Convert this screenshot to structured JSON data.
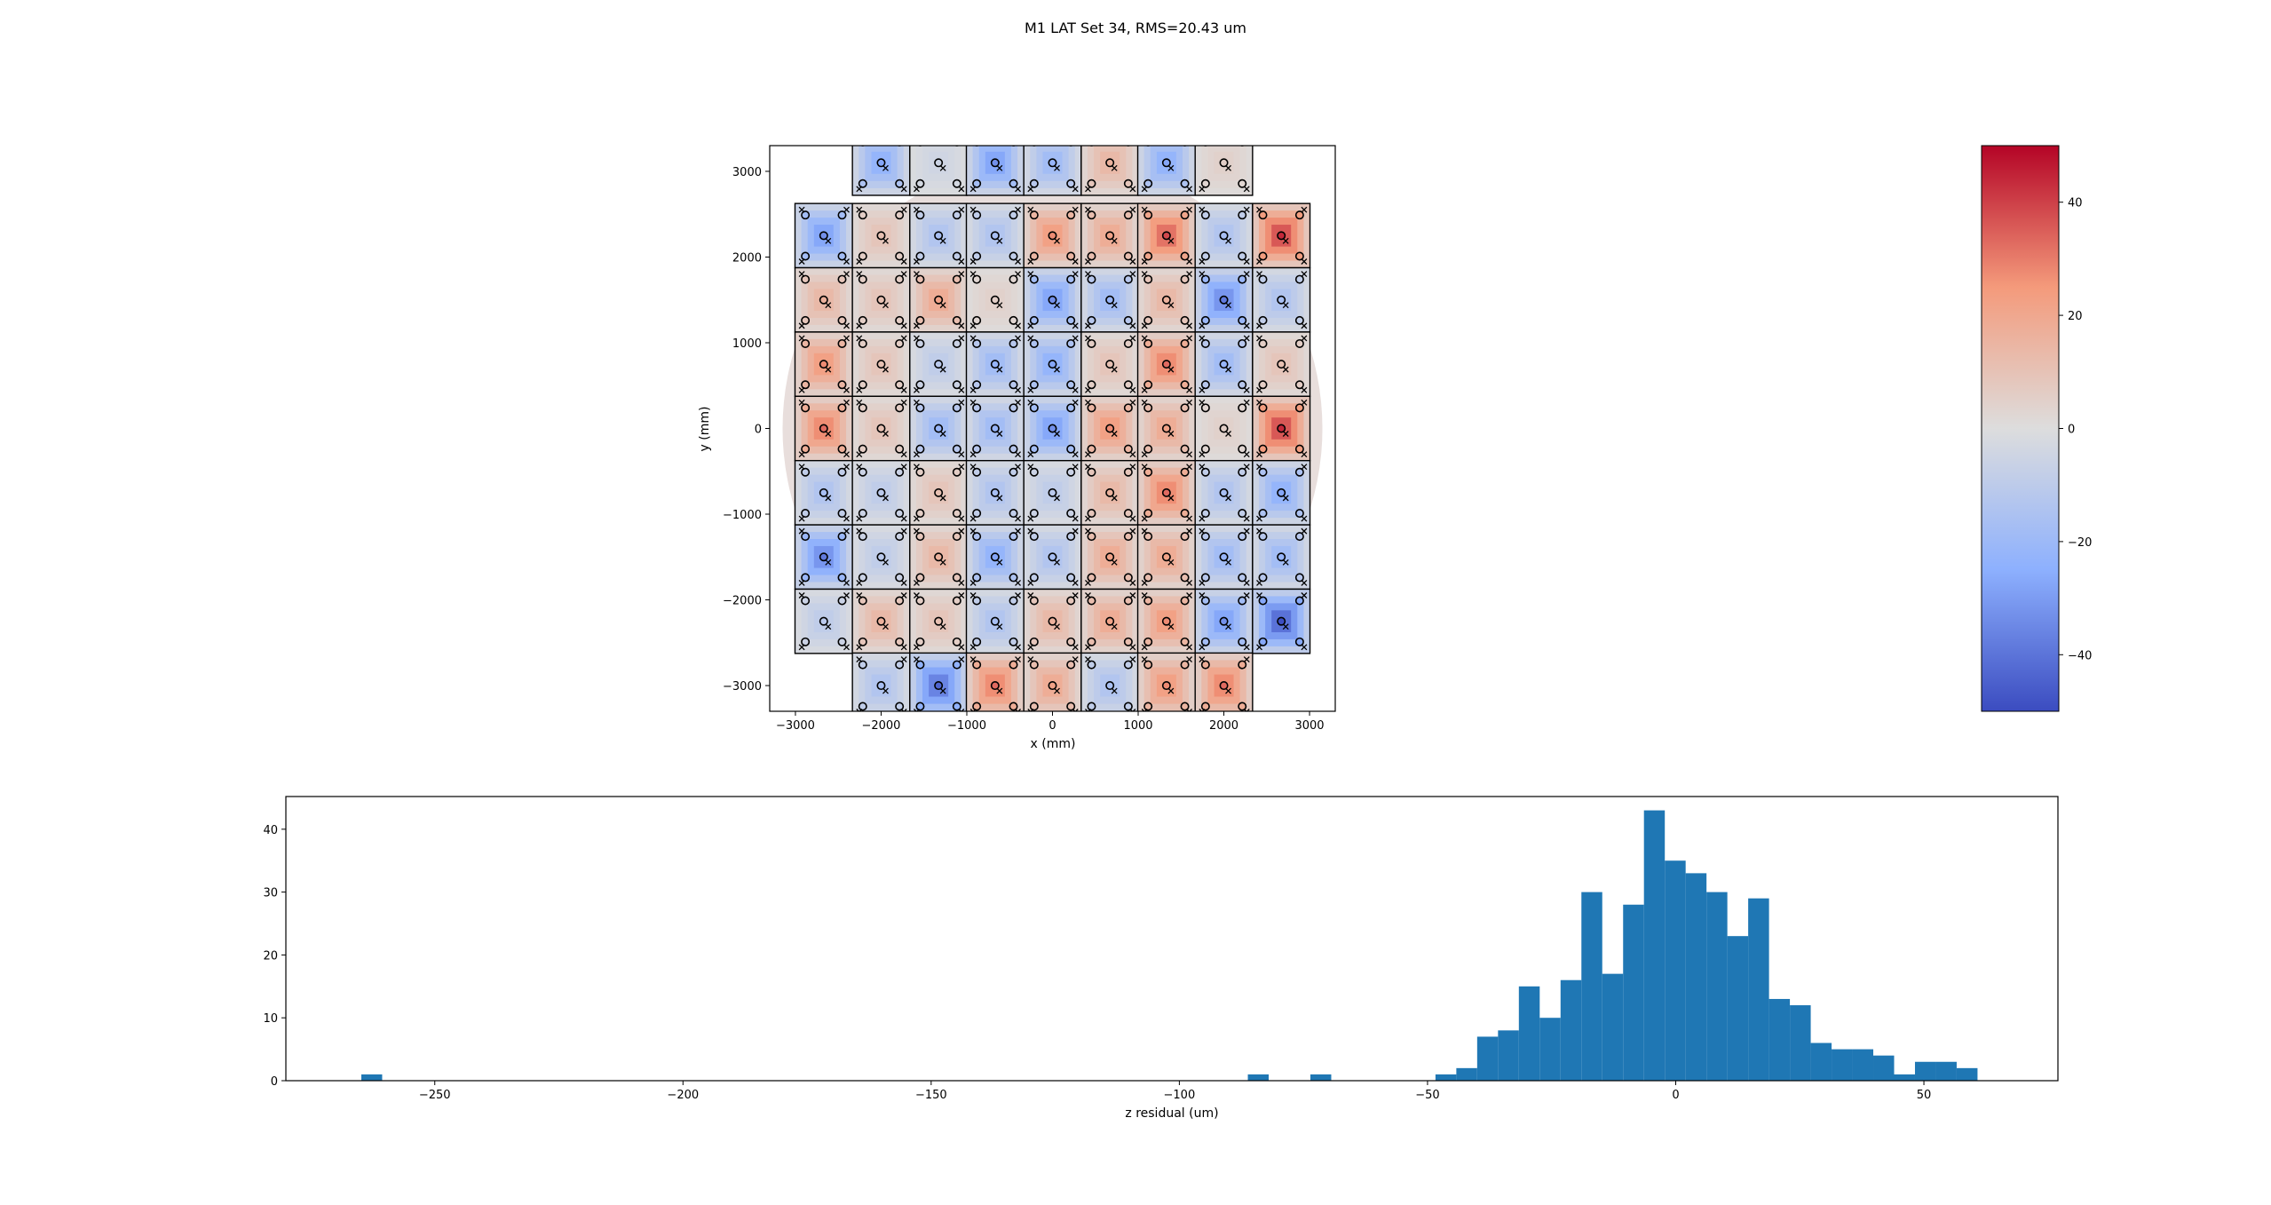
{
  "figure": {
    "title": "M1 LAT Set 34, RMS=20.43 um"
  },
  "chart_data": [
    {
      "type": "heatmap",
      "xlabel": "x (mm)",
      "ylabel": "y (mm)",
      "xlim": [
        -3300,
        3300
      ],
      "ylim": [
        -3300,
        3300
      ],
      "xticks": [
        -3000,
        -2000,
        -1000,
        0,
        1000,
        2000,
        3000
      ],
      "yticks": [
        -3000,
        -2000,
        -1000,
        0,
        1000,
        2000,
        3000
      ],
      "xtick_labels": [
        "−3000",
        "−2000",
        "−1000",
        "0",
        "1000",
        "2000",
        "3000"
      ],
      "ytick_labels": [
        "−3000",
        "−2000",
        "−1000",
        "0",
        "1000",
        "2000",
        "3000"
      ],
      "colormap": "coolwarm",
      "clim": [
        -50,
        50
      ],
      "colorbar_ticks": [
        -40,
        -20,
        0,
        20,
        40
      ],
      "colorbar_tick_labels": [
        "−40",
        "−20",
        "0",
        "20",
        "40"
      ],
      "panel_columns_x": [
        -2670,
        -2000,
        -1330,
        -670,
        0,
        670,
        1330,
        2000,
        2670
      ],
      "panel_rows_y": [
        3100,
        2250,
        1500,
        750,
        0,
        -750,
        -1500,
        -2250,
        -3000
      ],
      "panel_rows_columns": [
        [
          1,
          7
        ],
        [
          0,
          8
        ],
        [
          0,
          8
        ],
        [
          0,
          8
        ],
        [
          0,
          8
        ],
        [
          0,
          8
        ],
        [
          0,
          8
        ],
        [
          0,
          8
        ],
        [
          1,
          7
        ]
      ],
      "panel_center_values": [
        [
          null,
          -25,
          -5,
          -30,
          -20,
          15,
          -25,
          5,
          null
        ],
        [
          -30,
          10,
          -15,
          -15,
          25,
          20,
          35,
          -15,
          40
        ],
        [
          15,
          10,
          20,
          5,
          -30,
          -20,
          15,
          -35,
          -15
        ],
        [
          25,
          10,
          -10,
          -20,
          -25,
          10,
          30,
          -20,
          10
        ],
        [
          30,
          10,
          -20,
          -20,
          -30,
          25,
          20,
          5,
          40
        ],
        [
          -15,
          -10,
          10,
          -15,
          -10,
          15,
          30,
          -15,
          -25
        ],
        [
          -35,
          -10,
          15,
          -25,
          -15,
          20,
          20,
          -20,
          -20
        ],
        [
          -10,
          15,
          10,
          -15,
          15,
          20,
          25,
          -30,
          -45
        ],
        [
          null,
          -15,
          -40,
          30,
          20,
          -15,
          25,
          30,
          null
        ]
      ]
    },
    {
      "type": "bar",
      "xlabel": "z residual (um)",
      "ylabel": "",
      "xlim": [
        -280,
        77
      ],
      "ylim": [
        0,
        45.2
      ],
      "xticks": [
        -250,
        -200,
        -150,
        -100,
        -50,
        0,
        50
      ],
      "xtick_labels": [
        "−250",
        "−200",
        "−150",
        "−100",
        "−50",
        "0",
        "50"
      ],
      "yticks": [
        0,
        10,
        20,
        30,
        40
      ],
      "ytick_labels": [
        "0",
        "10",
        "20",
        "30",
        "40"
      ],
      "bin_width": 4.2,
      "bin_starts": [
        -264.8,
        -86.2,
        -73.6,
        -48.4,
        -44.2,
        -40.0,
        -35.8,
        -31.6,
        -27.4,
        -23.2,
        -19.0,
        -14.8,
        -10.6,
        -6.4,
        -2.2,
        2.0,
        6.2,
        10.4,
        14.6,
        18.8,
        23.0,
        27.2,
        31.4,
        35.6,
        39.8,
        44.0,
        48.2,
        52.4,
        56.6
      ],
      "counts": [
        1,
        1,
        1,
        1,
        2,
        7,
        8,
        15,
        10,
        16,
        30,
        17,
        28,
        43,
        35,
        33,
        30,
        23,
        29,
        13,
        12,
        6,
        5,
        5,
        4,
        1,
        3,
        3,
        2
      ],
      "color": "#1f77b4"
    }
  ]
}
